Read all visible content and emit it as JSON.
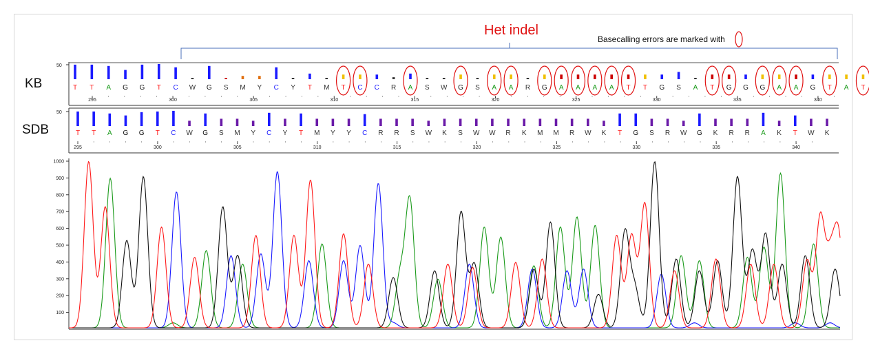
{
  "annotations": {
    "title": "Het indel",
    "note": "Basecalling errors are marked with"
  },
  "rows": [
    {
      "label": "KB",
      "qv_max_label": "50",
      "start_position": 295,
      "position_labels": [
        "295",
        "300",
        "305",
        "310",
        "315",
        "320",
        "325",
        "330",
        "335",
        "340"
      ],
      "bases": [
        "T",
        "T",
        "A",
        "G",
        "G",
        "T",
        "C",
        "W",
        "G",
        "S",
        "M",
        "Y",
        "C",
        "Y",
        "T",
        "M",
        "T",
        "C",
        "C",
        "R",
        "A",
        "S",
        "W",
        "G",
        "S",
        "A",
        "A",
        "R",
        "G",
        "A",
        "A",
        "A",
        "A",
        "T",
        "T",
        "G",
        "S",
        "A",
        "T",
        "G",
        "G",
        "G",
        "A",
        "A",
        "G",
        "T",
        "A",
        "T"
      ],
      "quality": [
        44,
        44,
        40,
        28,
        44,
        46,
        36,
        4,
        40,
        4,
        10,
        10,
        36,
        4,
        17,
        4,
        14,
        14,
        14,
        6,
        17,
        4,
        4,
        14,
        4,
        14,
        14,
        4,
        14,
        14,
        14,
        14,
        14,
        14,
        14,
        14,
        22,
        4,
        14,
        14,
        14,
        14,
        14,
        14,
        14,
        14,
        14,
        14
      ],
      "quality_colors": [
        "#1a1aff",
        "#1a1aff",
        "#1a1aff",
        "#1a1aff",
        "#1a1aff",
        "#1a1aff",
        "#1a1aff",
        "#333333",
        "#1a1aff",
        "#cc2222",
        "#e07010",
        "#e07010",
        "#1a1aff",
        "#333333",
        "#1a1aff",
        "#333333",
        "#f0c000",
        "#f0c000",
        "#1a1aff",
        "#333333",
        "#1a1aff",
        "#333333",
        "#333333",
        "#f0c000",
        "#333333",
        "#f0c000",
        "#f0c000",
        "#333333",
        "#f0c000",
        "#cc0000",
        "#cc0000",
        "#cc0000",
        "#cc0000",
        "#cc0000",
        "#f0c000",
        "#1a1aff",
        "#1a1aff",
        "#333333",
        "#cc0000",
        "#cc0000",
        "#1a1aff",
        "#f0c000",
        "#f0c000",
        "#cc0000",
        "#1a1aff",
        "#f0c000",
        "#f0c000",
        "#f0c000"
      ],
      "circled_indices": [
        16,
        17,
        20,
        23,
        25,
        26,
        28,
        29,
        30,
        31,
        32,
        33,
        38,
        39,
        41,
        42,
        43,
        45,
        47
      ]
    },
    {
      "label": "SDB",
      "qv_max_label": "50",
      "start_position": 295,
      "position_labels": [
        "295",
        "300",
        "305",
        "310",
        "315",
        "320",
        "325",
        "330",
        "335",
        "340"
      ],
      "bases": [
        "T",
        "T",
        "A",
        "G",
        "G",
        "T",
        "C",
        "W",
        "G",
        "S",
        "M",
        "Y",
        "C",
        "Y",
        "T",
        "M",
        "Y",
        "Y",
        "C",
        "R",
        "R",
        "S",
        "W",
        "K",
        "S",
        "W",
        "W",
        "R",
        "K",
        "M",
        "M",
        "R",
        "W",
        "K",
        "T",
        "G",
        "S",
        "R",
        "W",
        "G",
        "K",
        "R",
        "R",
        "A",
        "K",
        "T",
        "W",
        "K"
      ],
      "quality": [
        44,
        44,
        38,
        32,
        42,
        44,
        46,
        16,
        38,
        22,
        22,
        16,
        40,
        22,
        38,
        22,
        22,
        22,
        36,
        22,
        22,
        22,
        16,
        22,
        22,
        22,
        22,
        22,
        22,
        22,
        22,
        22,
        22,
        16,
        38,
        38,
        22,
        22,
        16,
        38,
        22,
        22,
        22,
        40,
        16,
        32,
        22,
        22
      ],
      "quality_colors": [
        "#1a1aff",
        "#1a1aff",
        "#1a1aff",
        "#1a1aff",
        "#1a1aff",
        "#1a1aff",
        "#1a1aff",
        "#6a1aa8",
        "#1a1aff",
        "#6a1aa8",
        "#6a1aa8",
        "#6a1aa8",
        "#1a1aff",
        "#6a1aa8",
        "#1a1aff",
        "#6a1aa8",
        "#6a1aa8",
        "#6a1aa8",
        "#1a1aff",
        "#6a1aa8",
        "#6a1aa8",
        "#6a1aa8",
        "#6a1aa8",
        "#6a1aa8",
        "#6a1aa8",
        "#6a1aa8",
        "#6a1aa8",
        "#6a1aa8",
        "#6a1aa8",
        "#6a1aa8",
        "#6a1aa8",
        "#6a1aa8",
        "#6a1aa8",
        "#6a1aa8",
        "#1a1aff",
        "#1a1aff",
        "#6a1aa8",
        "#6a1aa8",
        "#6a1aa8",
        "#1a1aff",
        "#6a1aa8",
        "#6a1aa8",
        "#6a1aa8",
        "#1a1aff",
        "#6a1aa8",
        "#1a1aff",
        "#6a1aa8",
        "#6a1aa8"
      ]
    }
  ],
  "base_colors": {
    "A": "#1a9a1a",
    "C": "#1a1aff",
    "G": "#111111",
    "T": "#ff1a1a",
    "other": "#333333"
  },
  "chart_data": {
    "type": "line",
    "title": "Het indel",
    "xlabel": "",
    "ylabel": "",
    "ylim": [
      0,
      1000
    ],
    "xlim": [
      295,
      341
    ],
    "yticks": [
      "100",
      "200",
      "300",
      "400",
      "500",
      "600",
      "700",
      "800",
      "900",
      "1000"
    ],
    "series": [
      {
        "color": "#1a9a1a",
        "base": "A",
        "peaks": [
          [
            297,
            890
          ],
          [
            300.8,
            30
          ],
          [
            302.8,
            460
          ],
          [
            305,
            380
          ],
          [
            309.8,
            500
          ],
          [
            314.5,
            300
          ],
          [
            315.1,
            760
          ],
          [
            316.8,
            290
          ],
          [
            319.6,
            600
          ],
          [
            320.6,
            540
          ],
          [
            322.6,
            370
          ],
          [
            324.2,
            600
          ],
          [
            325.2,
            660
          ],
          [
            326.3,
            610
          ],
          [
            331.5,
            430
          ],
          [
            332.6,
            400
          ],
          [
            335.5,
            420
          ],
          [
            336.5,
            480
          ],
          [
            337.5,
            920
          ],
          [
            339.5,
            500
          ]
        ]
      },
      {
        "color": "#1a1aff",
        "base": "C",
        "peaks": [
          [
            301,
            810
          ],
          [
            304.3,
            430
          ],
          [
            306.1,
            440
          ],
          [
            307.1,
            930
          ],
          [
            309,
            400
          ],
          [
            311.1,
            400
          ],
          [
            312.1,
            490
          ],
          [
            313.2,
            860
          ],
          [
            314.1,
            30
          ],
          [
            318.7,
            380
          ],
          [
            322.5,
            350
          ],
          [
            324.6,
            340
          ],
          [
            325.6,
            350
          ],
          [
            330.3,
            320
          ],
          [
            332.3,
            30
          ],
          [
            338.4,
            30
          ],
          [
            340.5,
            30
          ]
        ]
      },
      {
        "color": "#111111",
        "base": "G",
        "peaks": [
          [
            298,
            520
          ],
          [
            299,
            900
          ],
          [
            303.8,
            720
          ],
          [
            304.7,
            430
          ],
          [
            314.1,
            300
          ],
          [
            316.6,
            340
          ],
          [
            318.2,
            690
          ],
          [
            319,
            380
          ],
          [
            322.6,
            350
          ],
          [
            323.6,
            630
          ],
          [
            326.5,
            200
          ],
          [
            328.1,
            570
          ],
          [
            328.7,
            230
          ],
          [
            329.9,
            990
          ],
          [
            331.2,
            410
          ],
          [
            332.6,
            340
          ],
          [
            333.7,
            400
          ],
          [
            334.9,
            900
          ],
          [
            335.8,
            460
          ],
          [
            336.6,
            560
          ],
          [
            337.6,
            380
          ],
          [
            339,
            430
          ],
          [
            340.8,
            350
          ]
        ]
      },
      {
        "color": "#ff1a1a",
        "base": "T",
        "peaks": [
          [
            295.7,
            990
          ],
          [
            296.7,
            720
          ],
          [
            300.1,
            600
          ],
          [
            302.1,
            420
          ],
          [
            305.8,
            550
          ],
          [
            308.1,
            550
          ],
          [
            309.1,
            880
          ],
          [
            311.1,
            560
          ],
          [
            312.6,
            380
          ],
          [
            317.4,
            380
          ],
          [
            318.9,
            360
          ],
          [
            321.5,
            390
          ],
          [
            323.1,
            410
          ],
          [
            327.6,
            550
          ],
          [
            328.5,
            550
          ],
          [
            329.3,
            740
          ],
          [
            331.1,
            340
          ],
          [
            333.6,
            410
          ],
          [
            335.7,
            380
          ],
          [
            337.1,
            380
          ],
          [
            339.1,
            400
          ],
          [
            339.9,
            650
          ],
          [
            340.5,
            380
          ],
          [
            341,
            540
          ]
        ]
      }
    ]
  }
}
